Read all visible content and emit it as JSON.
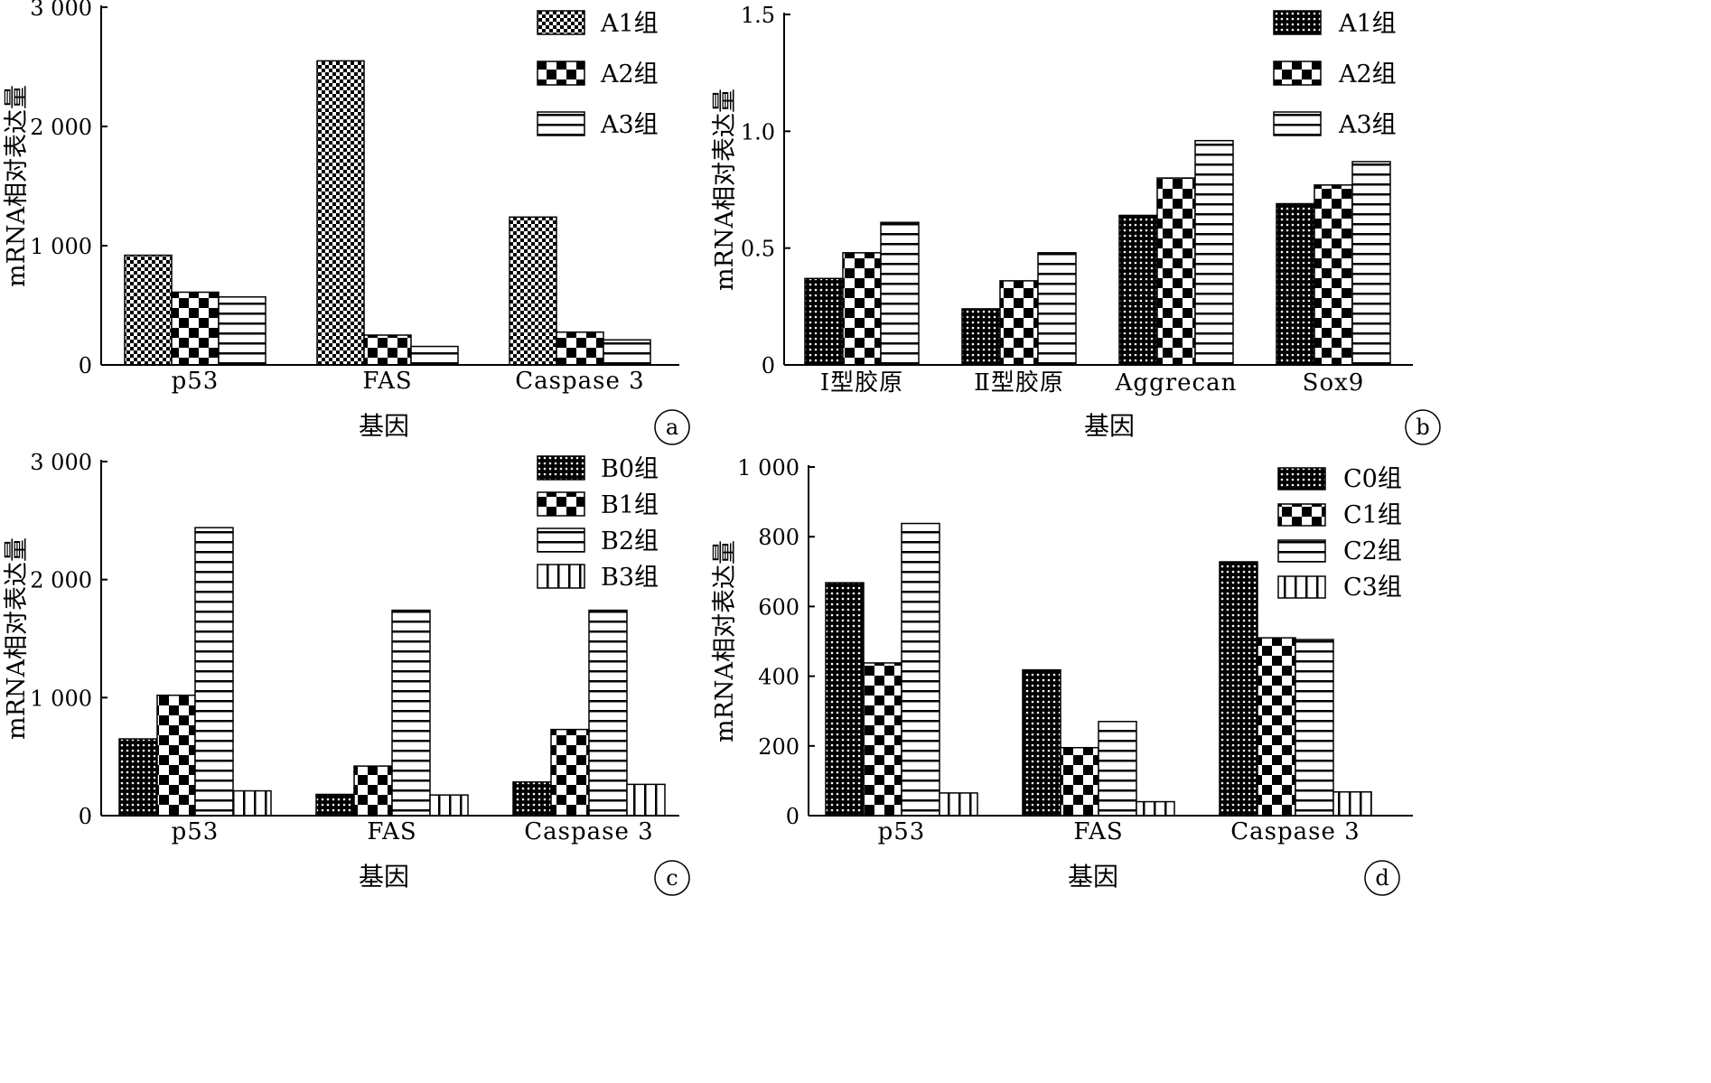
{
  "charts": [
    {
      "panel_label": "a",
      "type": "bar",
      "ylabel": "mRNA相对表达量",
      "xlabel": "基因",
      "ylim": [
        0,
        3000
      ],
      "yticks": [
        0,
        1000,
        2000,
        3000
      ],
      "ytick_labels": [
        "0",
        "1 000",
        "2 000",
        "3 000"
      ],
      "categories": [
        "p53",
        "FAS",
        "Caspase 3"
      ],
      "series": [
        {
          "name": "A1组",
          "pattern": "checker-fine",
          "values": [
            920,
            2550,
            1240
          ]
        },
        {
          "name": "A2组",
          "pattern": "checker-coarse",
          "values": [
            610,
            250,
            275
          ]
        },
        {
          "name": "A3组",
          "pattern": "hlines",
          "values": [
            570,
            155,
            210
          ]
        }
      ],
      "legend_position": "top-right",
      "grid": false
    },
    {
      "panel_label": "b",
      "type": "bar",
      "ylabel": "mRNA相对表达量",
      "xlabel": "基因",
      "ylim": [
        0,
        1.5
      ],
      "yticks": [
        0,
        0.5,
        1.0,
        1.5
      ],
      "ytick_labels": [
        "0",
        "0.5",
        "1.0",
        "1.5"
      ],
      "categories": [
        "Ⅰ型胶原",
        "Ⅱ型胶原",
        "Aggrecan",
        "Sox9"
      ],
      "series": [
        {
          "name": "A1组",
          "pattern": "dots",
          "values": [
            0.37,
            0.24,
            0.64,
            0.69
          ]
        },
        {
          "name": "A2组",
          "pattern": "checker-coarse",
          "values": [
            0.48,
            0.36,
            0.8,
            0.77
          ]
        },
        {
          "name": "A3组",
          "pattern": "hlines",
          "values": [
            0.61,
            0.48,
            0.96,
            0.87
          ]
        }
      ],
      "legend_position": "top-right",
      "grid": false
    },
    {
      "panel_label": "c",
      "type": "bar",
      "ylabel": "mRNA相对表达量",
      "xlabel": "基因",
      "ylim": [
        0,
        3000
      ],
      "yticks": [
        0,
        1000,
        2000,
        3000
      ],
      "ytick_labels": [
        "0",
        "1 000",
        "2 000",
        "3 000"
      ],
      "categories": [
        "p53",
        "FAS",
        "Caspase 3"
      ],
      "series": [
        {
          "name": "B0组",
          "pattern": "dots",
          "values": [
            650,
            180,
            285
          ]
        },
        {
          "name": "B1组",
          "pattern": "checker-coarse",
          "values": [
            1020,
            420,
            730
          ]
        },
        {
          "name": "B2组",
          "pattern": "hlines",
          "values": [
            2440,
            1740,
            1740
          ]
        },
        {
          "name": "B3组",
          "pattern": "vlines",
          "values": [
            210,
            175,
            265
          ]
        }
      ],
      "legend_position": "top-right",
      "grid": false
    },
    {
      "panel_label": "d",
      "type": "bar",
      "ylabel": "mRNA相对表达量",
      "xlabel": "基因",
      "ylim": [
        0,
        1000
      ],
      "yticks": [
        0,
        200,
        400,
        600,
        800,
        1000
      ],
      "ytick_labels": [
        "0",
        "200",
        "400",
        "600",
        "800",
        "1 000"
      ],
      "categories": [
        "p53",
        "FAS",
        "Caspase 3"
      ],
      "series": [
        {
          "name": "C0组",
          "pattern": "dots",
          "values": [
            668,
            418,
            728
          ]
        },
        {
          "name": "C1组",
          "pattern": "checker-coarse",
          "values": [
            438,
            195,
            510
          ]
        },
        {
          "name": "C2组",
          "pattern": "hlines",
          "values": [
            838,
            270,
            505
          ]
        },
        {
          "name": "C3组",
          "pattern": "vlines",
          "values": [
            65,
            40,
            68
          ]
        }
      ],
      "legend_position": "top-right",
      "grid": false
    }
  ]
}
